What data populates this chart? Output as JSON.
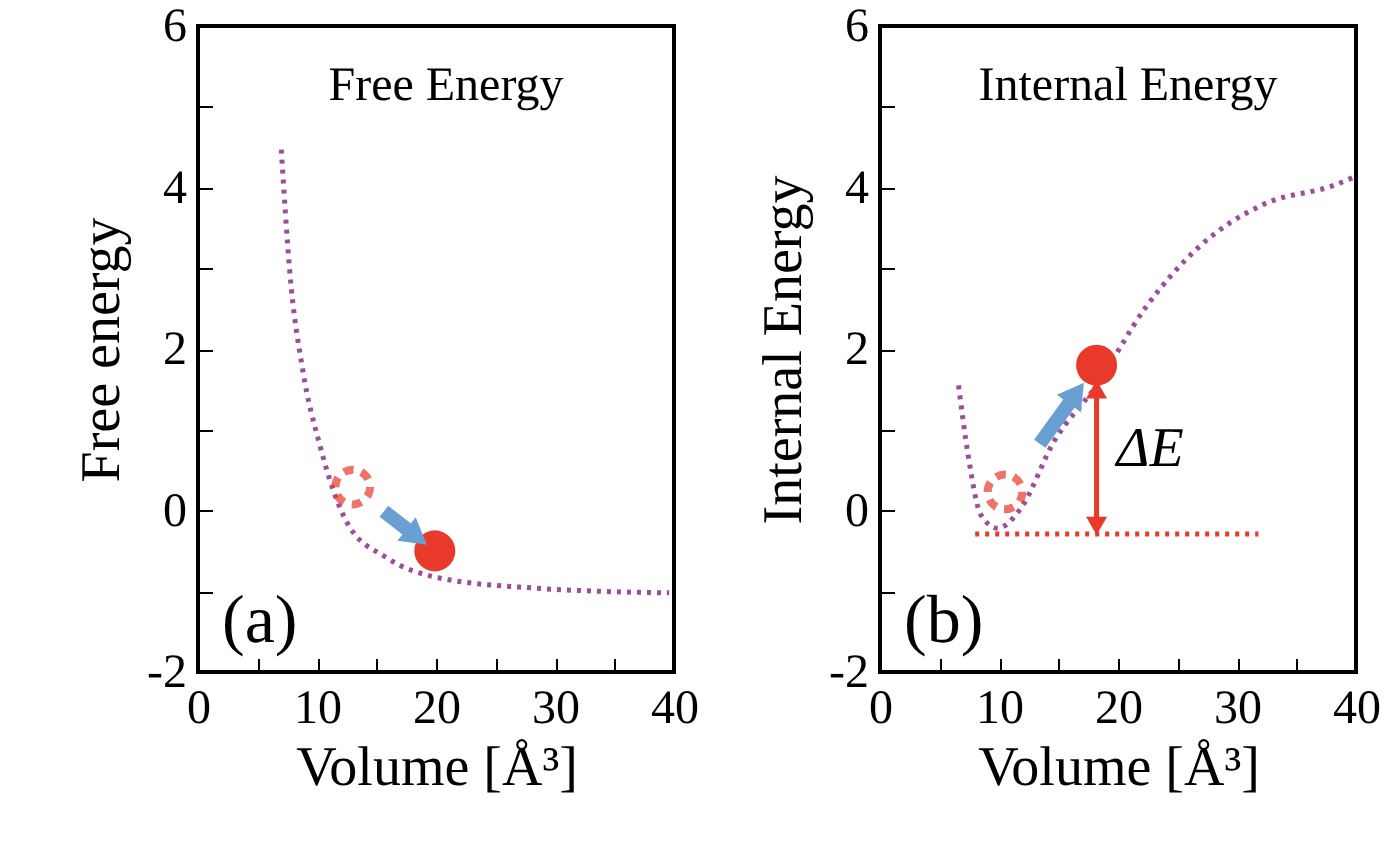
{
  "chart_data": [
    {
      "type": "line",
      "title": "Free Energy",
      "xlabel": "Volume [Å³]",
      "ylabel": "Free energy",
      "xlim": [
        0,
        40
      ],
      "xticks": [
        0,
        {
          "value": 5,
          "label": null
        },
        10,
        {
          "value": 15,
          "label": null
        },
        20,
        {
          "value": 25,
          "label": null
        },
        30,
        {
          "value": 35,
          "label": null
        },
        40
      ],
      "ylim": [
        -2,
        6
      ],
      "yticks": [
        -2,
        {
          "value": -1,
          "label": null
        },
        0,
        {
          "value": 1,
          "label": null
        },
        2,
        {
          "value": 3,
          "label": null
        },
        4,
        {
          "value": 5,
          "label": null
        },
        6
      ],
      "annotations": [
        "(a)"
      ],
      "series": [
        {
          "color": "#9b4f9b",
          "line_style": "dotted",
          "x": [
            7.0,
            7.7,
            8.8,
            10.2,
            12.6,
            15.8,
            20.1,
            28.2,
            39.6
          ],
          "values": [
            4.47,
            2.98,
            1.74,
            0.83,
            -0.17,
            -0.58,
            -0.83,
            -0.96,
            -1.02
          ]
        },
        {
          "type": "scatter",
          "marker": "circle",
          "color": "#e8392b",
          "line_style": "dashed",
          "x": [
            13.0
          ],
          "values": [
            0.29
          ]
        },
        {
          "type": "scatter",
          "marker": "circle",
          "color": "#e8392b",
          "x": [
            19.9
          ],
          "values": [
            -0.5
          ]
        }
      ]
    },
    {
      "type": "line",
      "title": "Internal Energy",
      "xlabel": "Volume [Å³]",
      "ylabel": "Internal Energy",
      "xlim": [
        0,
        40
      ],
      "xticks": [
        0,
        {
          "value": 5,
          "label": null
        },
        10,
        {
          "value": 15,
          "label": null
        },
        20,
        {
          "value": 25,
          "label": null
        },
        30,
        {
          "value": 35,
          "label": null
        },
        40
      ],
      "ylim": [
        -2,
        6
      ],
      "yticks": [
        -2,
        {
          "value": -1,
          "label": null
        },
        0,
        {
          "value": 1,
          "label": null
        },
        2,
        {
          "value": 3,
          "label": null
        },
        4,
        {
          "value": 5,
          "label": null
        },
        6
      ],
      "annotations": [
        "(b)",
        "ΔE"
      ],
      "series": [
        {
          "color": "#9b4f9b",
          "line_style": "dotted",
          "x": [
            6.6,
            7.4,
            8.5,
            9.9,
            11.8,
            14.6,
            18.2,
            22.3,
            26.7,
            32.2,
            38.2,
            40
          ],
          "values": [
            1.55,
            0.69,
            -0.06,
            -0.22,
            0.02,
            0.85,
            1.55,
            2.51,
            3.25,
            3.79,
            4.03,
            4.14
          ]
        },
        {
          "color": "#e8392b",
          "line_style": "dotted",
          "x": [
            8.0,
            31.8
          ],
          "values": [
            -0.29,
            -0.29
          ]
        },
        {
          "type": "scatter",
          "marker": "circle",
          "color": "#e8392b",
          "line_style": "dashed",
          "x": [
            10.5
          ],
          "values": [
            0.23
          ]
        },
        {
          "type": "scatter",
          "marker": "circle",
          "color": "#e8392b",
          "x": [
            18.2
          ],
          "values": [
            1.8
          ]
        }
      ]
    }
  ]
}
